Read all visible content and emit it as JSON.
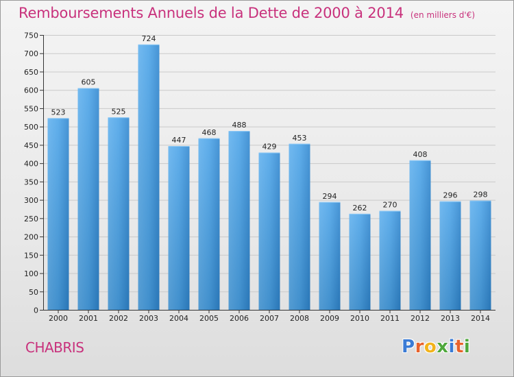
{
  "title": "Remboursements Annuels de la Dette de 2000 à 2014",
  "unit_label": "(en milliers d'€)",
  "commune": "CHABRIS",
  "logo": {
    "letters": [
      "P",
      "r",
      "o",
      "x",
      "i",
      "t",
      "i"
    ],
    "colors": [
      "#3a7bd5",
      "#e8622c",
      "#f2b31b",
      "#4fa83d",
      "#3a7bd5",
      "#e8622c",
      "#4fa83d"
    ]
  },
  "colors": {
    "bar": "#3d95dc",
    "accent": "#c8317c"
  },
  "chart_data": {
    "type": "bar",
    "title": "Remboursements Annuels de la Dette de 2000 à 2014",
    "xlabel": "",
    "ylabel": "",
    "ylim": [
      0,
      750
    ],
    "yticks": [
      0,
      50,
      100,
      150,
      200,
      250,
      300,
      350,
      400,
      450,
      500,
      550,
      600,
      650,
      700,
      750
    ],
    "grid": true,
    "categories": [
      "2000",
      "2001",
      "2002",
      "2003",
      "2004",
      "2005",
      "2006",
      "2007",
      "2008",
      "2009",
      "2010",
      "2011",
      "2012",
      "2013",
      "2014"
    ],
    "values": [
      523,
      605,
      525,
      724,
      447,
      468,
      488,
      429,
      453,
      294,
      262,
      270,
      408,
      296,
      298
    ]
  }
}
